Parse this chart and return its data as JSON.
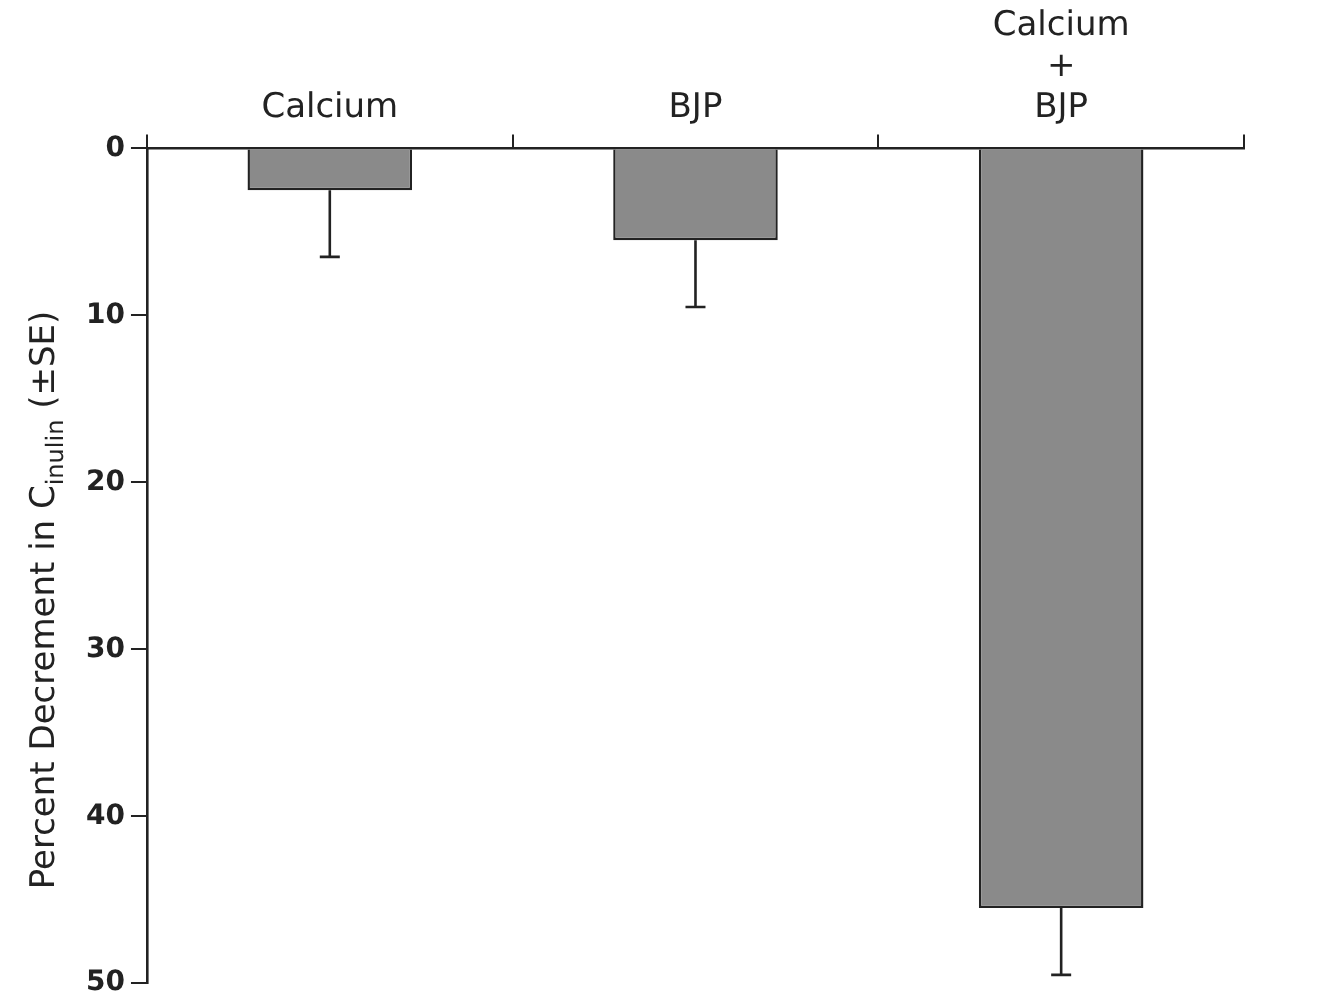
{
  "chart_data": {
    "type": "bar",
    "categories": [
      "Calcium",
      "BJP",
      "Calcium\n+\nBJP"
    ],
    "values": [
      2.5,
      5.5,
      45.5
    ],
    "errors": [
      4,
      4,
      4
    ],
    "color": "#8a8a8a",
    "ylabel": "Percent Decrement in C$_{inulin}$ (±SE)",
    "ylim": [
      50,
      0
    ],
    "yticks": [
      0,
      10,
      20,
      30,
      40,
      50
    ],
    "grid": false,
    "legend": false
  }
}
